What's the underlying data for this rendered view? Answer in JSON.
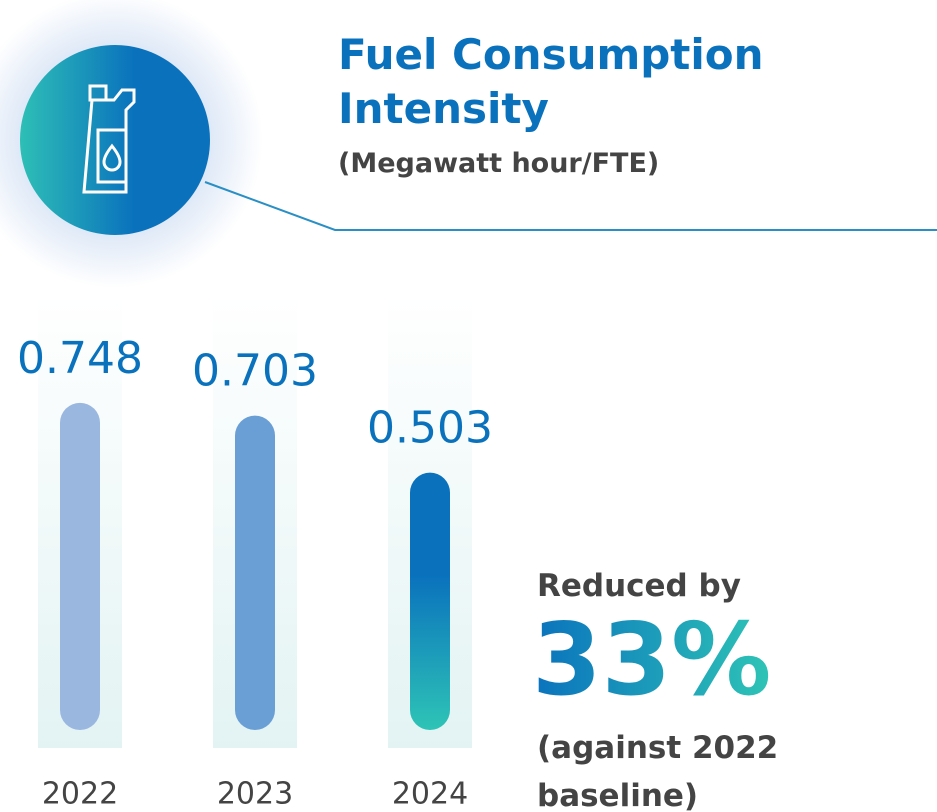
{
  "chart_data": {
    "type": "bar",
    "title": "Fuel Consumption Intensity",
    "subtitle": "(Megawatt hour/FTE)",
    "categories": [
      "2022",
      "2023",
      "2024"
    ],
    "values": [
      0.748,
      0.703,
      0.503
    ],
    "colors": [
      "#9ab7e0",
      "#6a9fd6",
      "#0a72bd"
    ],
    "ylim": [
      -0.4,
      0.8
    ],
    "annotations": [
      "Reduced by",
      "33%",
      "(against 2022 baseline)"
    ]
  }
}
